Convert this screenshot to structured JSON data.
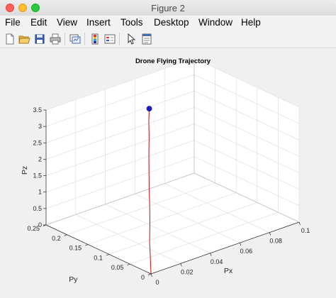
{
  "window": {
    "title": "Figure 2"
  },
  "menu": [
    "File",
    "Edit",
    "View",
    "Insert",
    "Tools",
    "Desktop",
    "Window",
    "Help"
  ],
  "toolbar": {
    "icons": [
      "new-figure-icon",
      "open-file-icon",
      "save-icon",
      "print-icon",
      "link-plot-icon",
      "colorbar-icon",
      "legend-icon",
      "pointer-icon",
      "property-editor-icon"
    ]
  },
  "colors": {
    "trajectory": "#cc2020",
    "endpoint": "#1a1acc"
  },
  "chart_data": {
    "type": "line",
    "title": "Drone Flying Trajectory",
    "xlabel": "Px",
    "ylabel": "Py",
    "zlabel": "Pz",
    "xlim": [
      0,
      0.1
    ],
    "ylim": [
      0,
      0.25
    ],
    "zlim": [
      0,
      3.5
    ],
    "x_ticks": [
      "0",
      "0.02",
      "0.04",
      "0.06",
      "0.08",
      "0.1"
    ],
    "y_ticks": [
      "0",
      "0.05",
      "0.1",
      "0.15",
      "0.2",
      "0.25"
    ],
    "z_ticks": [
      "0",
      "0.5",
      "1",
      "1.5",
      "2",
      "2.5",
      "3",
      "3.5"
    ],
    "grid": true,
    "view": "3d",
    "trajectory": [
      {
        "px": 0.0,
        "py": 0.0,
        "pz": 0.0
      },
      {
        "px": 0.003,
        "py": 0.012,
        "pz": 0.35
      },
      {
        "px": 0.007,
        "py": 0.028,
        "pz": 0.7
      },
      {
        "px": 0.012,
        "py": 0.045,
        "pz": 1.05
      },
      {
        "px": 0.017,
        "py": 0.063,
        "pz": 1.4
      },
      {
        "px": 0.022,
        "py": 0.082,
        "pz": 1.75
      },
      {
        "px": 0.027,
        "py": 0.1,
        "pz": 2.1
      },
      {
        "px": 0.032,
        "py": 0.118,
        "pz": 2.45
      },
      {
        "px": 0.037,
        "py": 0.135,
        "pz": 2.8
      },
      {
        "px": 0.041,
        "py": 0.15,
        "pz": 3.1
      },
      {
        "px": 0.045,
        "py": 0.163,
        "pz": 3.35
      }
    ],
    "endpoint": {
      "px": 0.045,
      "py": 0.163,
      "pz": 3.35
    }
  }
}
